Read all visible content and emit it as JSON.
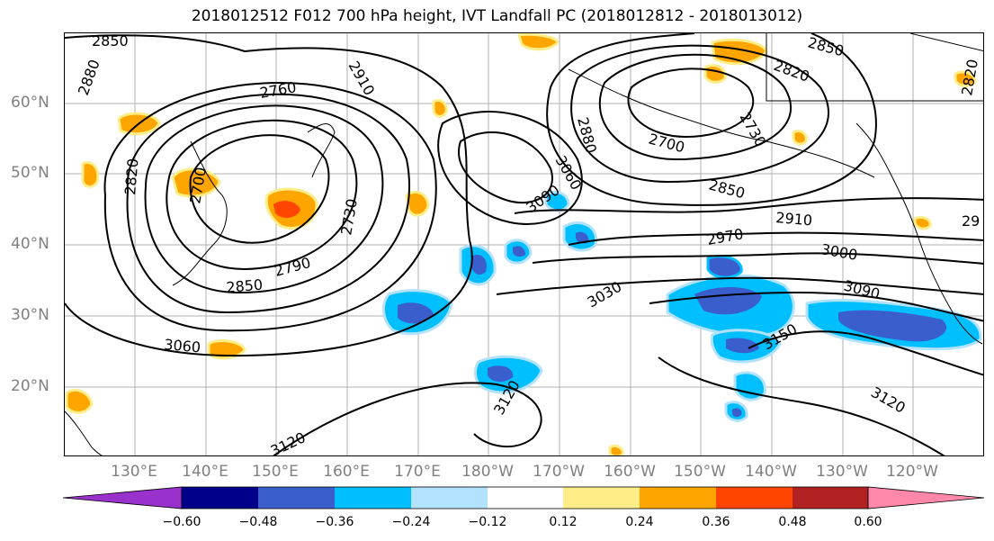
{
  "title": "2018012512 F012 700 hPa height, IVT Landfall PC (2018012812 - 2018013012)",
  "lat_labels": [
    "60°N",
    "50°N",
    "40°N",
    "30°N",
    "20°N"
  ],
  "lon_labels": [
    "130°E",
    "140°E",
    "150°E",
    "160°E",
    "170°E",
    "180°W",
    "170°W",
    "160°W",
    "150°W",
    "140°W",
    "130°W",
    "120°W"
  ],
  "contour_labels": [
    "2850",
    "2880",
    "2760",
    "2910",
    "2820",
    "2700",
    "2730",
    "2790",
    "2850",
    "3060",
    "3120",
    "2880",
    "2730",
    "2700",
    "2850",
    "2820",
    "2850",
    "3060",
    "3090",
    "2910",
    "2970",
    "3000",
    "3030",
    "3090",
    "3150",
    "3120",
    "3120",
    "29",
    "2820"
  ],
  "colorbar": {
    "tick_labels": [
      "−0.60",
      "−0.48",
      "−0.36",
      "−0.24",
      "−0.12",
      "0.12",
      "0.24",
      "0.36",
      "0.48",
      "0.60"
    ],
    "colors": [
      "#9932cc",
      "#00008b",
      "#3a5fcd",
      "#00bfff",
      "#b2e2fe",
      "#ffffff",
      "#ffee88",
      "#ffa500",
      "#ff4500",
      "#b22222",
      "#ff88aa"
    ]
  },
  "map_colors": {
    "contour": "#000000",
    "grid": "#b0b0b0",
    "coast": "#000000"
  }
}
